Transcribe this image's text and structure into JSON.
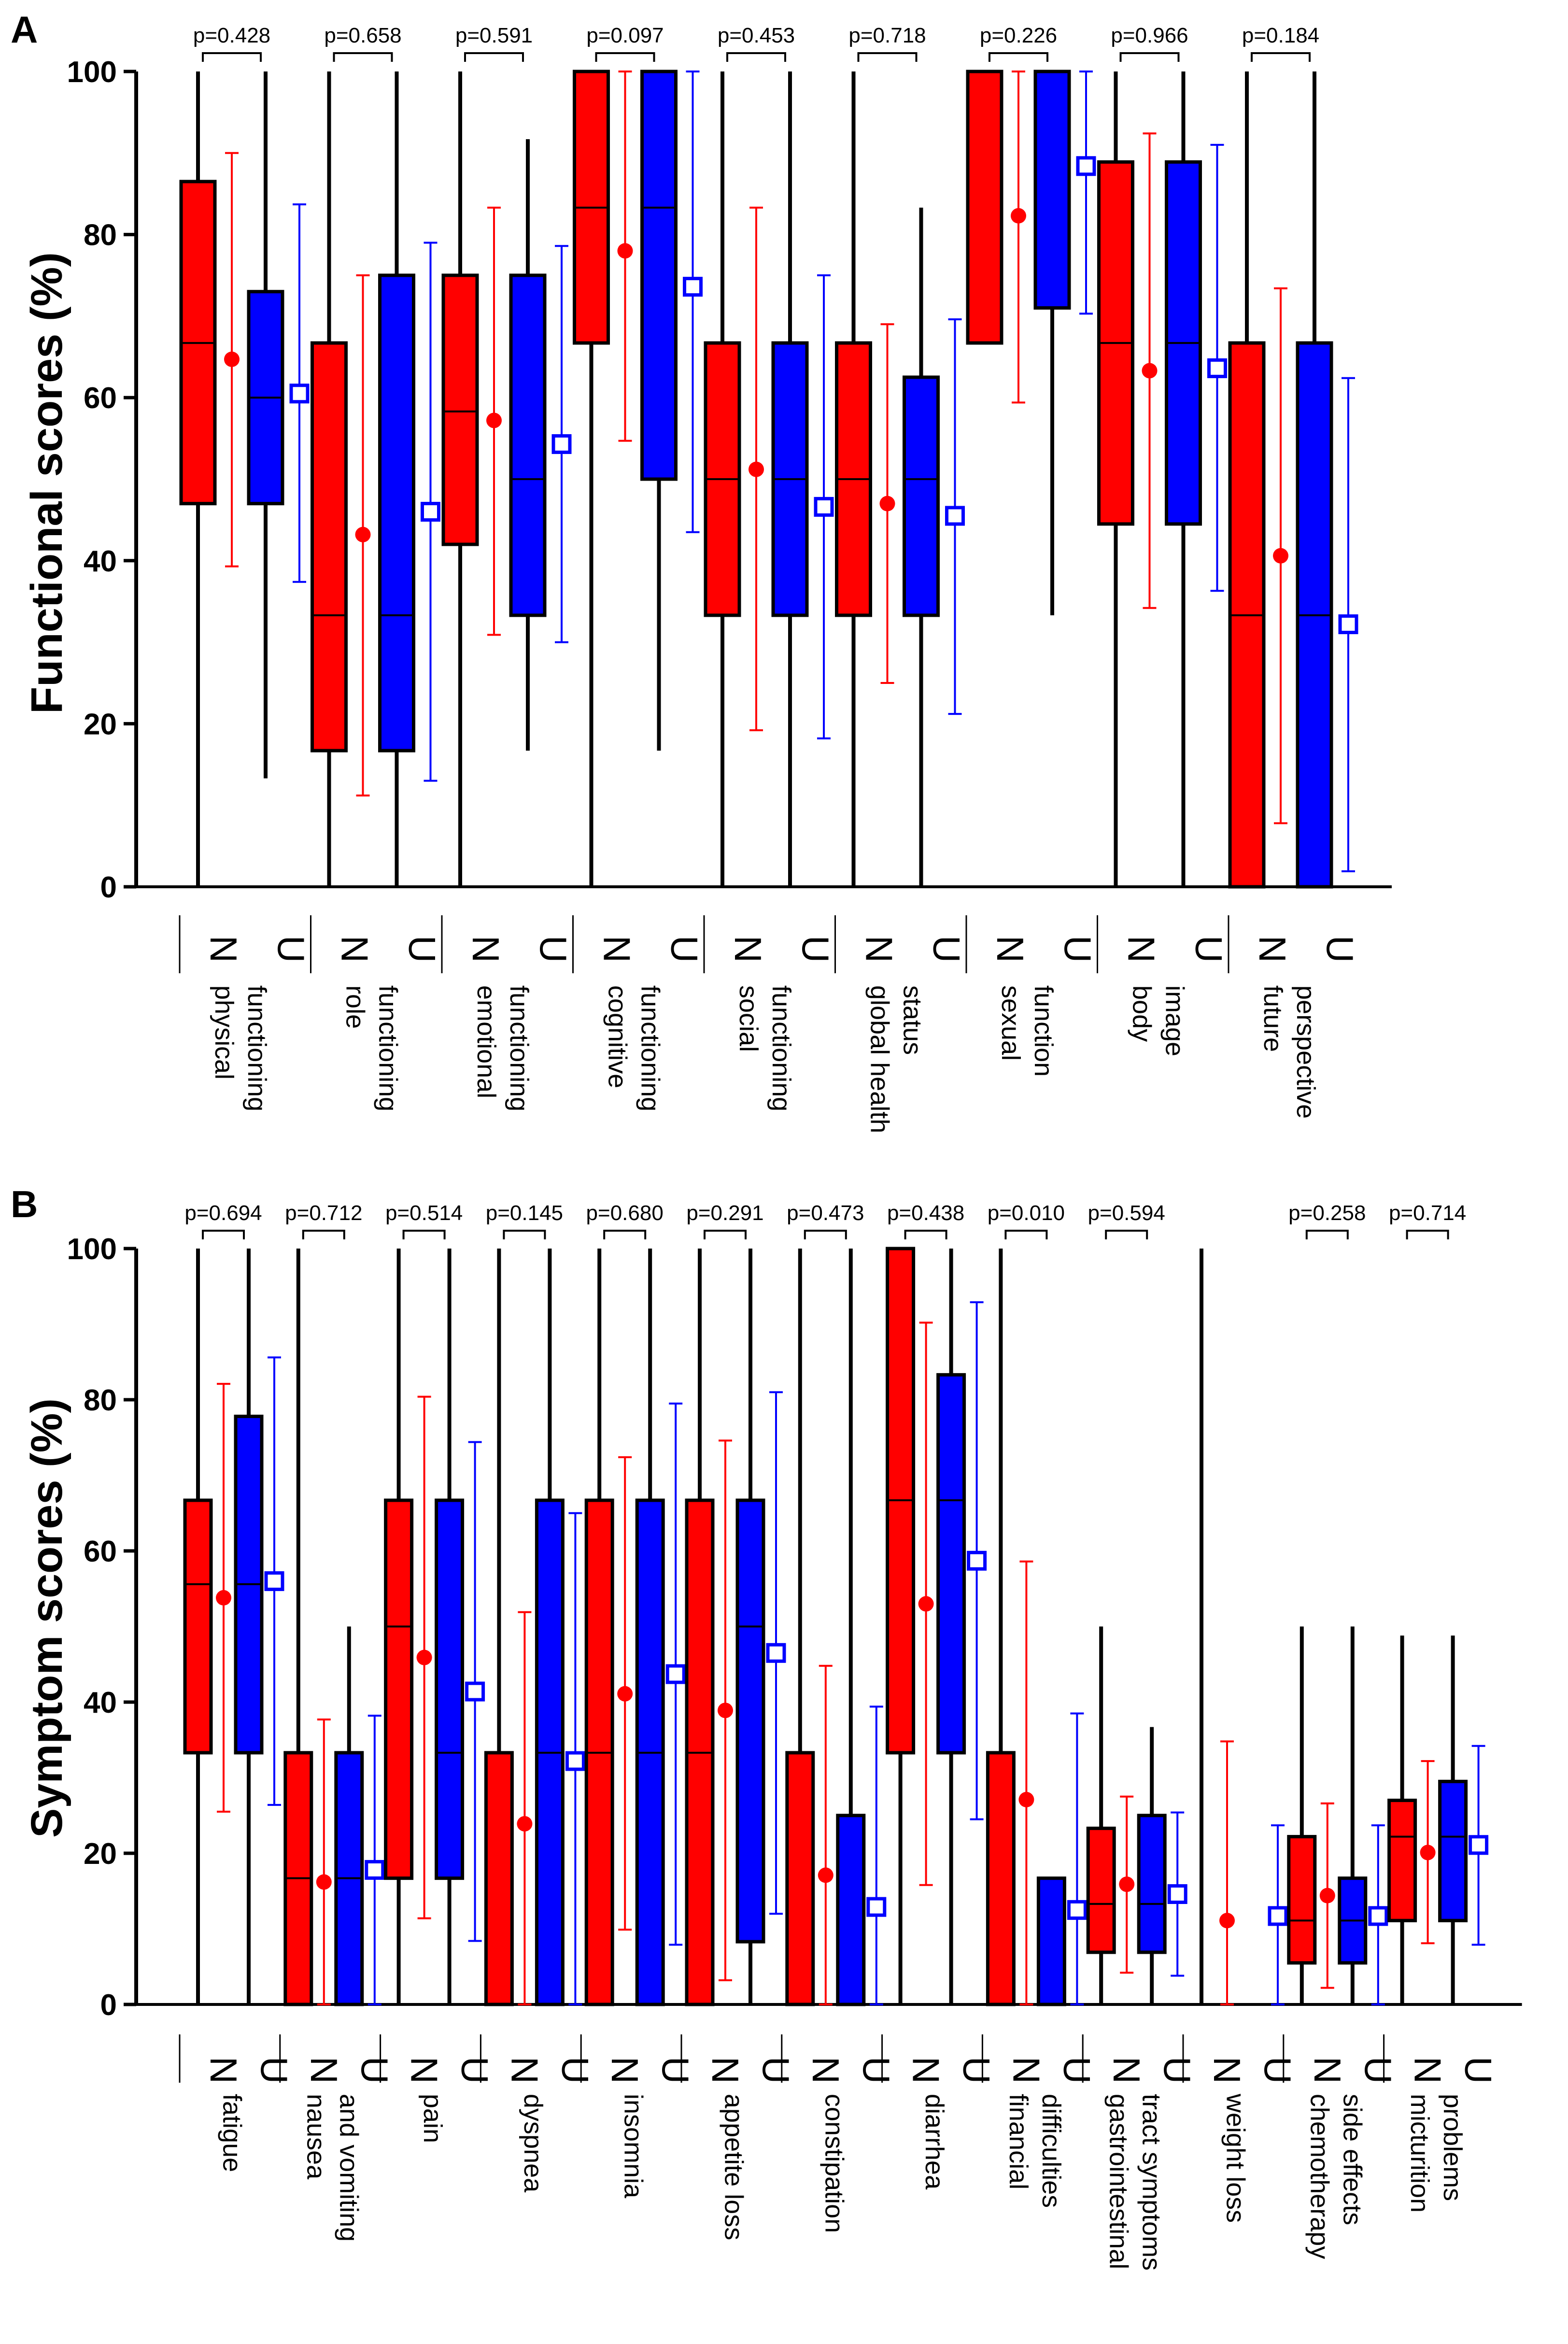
{
  "chart_data": [
    {
      "panel": "A",
      "type": "box",
      "ylabel": "Functional scores (%)",
      "ylim": [
        0,
        100
      ],
      "yticks": [
        0,
        20,
        40,
        60,
        80,
        100
      ],
      "group_markers": [
        "N",
        "U"
      ],
      "legend": [
        {
          "group": "N",
          "color": "#ff0000",
          "mean_marker": "filled circle"
        },
        {
          "group": "U",
          "color": "#0000ff",
          "mean_marker": "open square"
        }
      ],
      "categories": [
        {
          "label": [
            "physical",
            "functioning"
          ],
          "p": "p=0.428",
          "N": {
            "min": 0,
            "q1": 47,
            "median": 66.7,
            "q3": 86.5,
            "max": 100,
            "mean": 64.7,
            "sd_low": 39.3,
            "sd_high": 90
          },
          "U": {
            "min": 13.3,
            "q1": 47,
            "median": 60,
            "q3": 73,
            "max": 100,
            "mean": 60.5,
            "sd_low": 37.4,
            "sd_high": 83.7
          }
        },
        {
          "label": [
            "role",
            "functioning"
          ],
          "p": "p=0.658",
          "N": {
            "min": 0,
            "q1": 16.7,
            "median": 33.3,
            "q3": 66.7,
            "max": 100,
            "mean": 43.2,
            "sd_low": 11.2,
            "sd_high": 75
          },
          "U": {
            "min": 0,
            "q1": 16.7,
            "median": 33.3,
            "q3": 75,
            "max": 100,
            "mean": 46,
            "sd_low": 13,
            "sd_high": 79
          }
        },
        {
          "label": [
            "emotional",
            "functioning"
          ],
          "p": "p=0.591",
          "N": {
            "min": 0,
            "q1": 42,
            "median": 58.3,
            "q3": 75,
            "max": 100,
            "mean": 57.2,
            "sd_low": 30.9,
            "sd_high": 83.3
          },
          "U": {
            "min": 16.7,
            "q1": 33.3,
            "median": 50,
            "q3": 75,
            "max": 91.7,
            "mean": 54.3,
            "sd_low": 30,
            "sd_high": 78.6
          }
        },
        {
          "label": [
            "cognitive",
            "functioning"
          ],
          "p": "p=0.097",
          "N": {
            "min": 0,
            "q1": 66.7,
            "median": 83.3,
            "q3": 100,
            "max": 100,
            "mean": 78,
            "sd_low": 54.7,
            "sd_high": 100
          },
          "U": {
            "min": 16.7,
            "q1": 50,
            "median": 83.3,
            "q3": 100,
            "max": 100,
            "mean": 73.6,
            "sd_low": 43.5,
            "sd_high": 100
          }
        },
        {
          "label": [
            "social",
            "functioning"
          ],
          "p": "p=0.453",
          "N": {
            "min": 0,
            "q1": 33.3,
            "median": 50,
            "q3": 66.7,
            "max": 100,
            "mean": 51.2,
            "sd_low": 19.2,
            "sd_high": 83.3
          },
          "U": {
            "min": 0,
            "q1": 33.3,
            "median": 50,
            "q3": 66.7,
            "max": 100,
            "mean": 46.6,
            "sd_low": 18.2,
            "sd_high": 75
          }
        },
        {
          "label": [
            "global health",
            "status"
          ],
          "p": "p=0.718",
          "N": {
            "min": 0,
            "q1": 33.3,
            "median": 50,
            "q3": 66.7,
            "max": 100,
            "mean": 47,
            "sd_low": 25,
            "sd_high": 69
          },
          "U": {
            "min": 0,
            "q1": 33.3,
            "median": 50,
            "q3": 62.5,
            "max": 83.3,
            "mean": 45.5,
            "sd_low": 21.2,
            "sd_high": 69.6
          }
        },
        {
          "label": [
            "sexual",
            "function"
          ],
          "p": "p=0.226",
          "N": {
            "min": 66.7,
            "q1": 66.7,
            "median": 100,
            "q3": 100,
            "max": 100,
            "mean": 82.3,
            "sd_low": 59.4,
            "sd_high": 100
          },
          "U": {
            "min": 33.3,
            "q1": 71,
            "median": 100,
            "q3": 100,
            "max": 100,
            "mean": 88.4,
            "sd_low": 70.3,
            "sd_high": 100
          }
        },
        {
          "label": [
            "body",
            "image"
          ],
          "p": "p=0.966",
          "N": {
            "min": 0,
            "q1": 44.5,
            "median": 66.7,
            "q3": 88.9,
            "max": 100,
            "mean": 63.3,
            "sd_low": 34.2,
            "sd_high": 92.4
          },
          "U": {
            "min": 0,
            "q1": 44.5,
            "median": 66.7,
            "q3": 88.9,
            "max": 100,
            "mean": 63.6,
            "sd_low": 36.3,
            "sd_high": 91
          }
        },
        {
          "label": [
            "future",
            "perspective"
          ],
          "p": "p=0.184",
          "N": {
            "min": 0,
            "q1": 0,
            "median": 33.3,
            "q3": 66.7,
            "max": 100,
            "mean": 40.6,
            "sd_low": 7.8,
            "sd_high": 73.4
          },
          "U": {
            "min": 0,
            "q1": 0,
            "median": 33.3,
            "q3": 66.7,
            "max": 100,
            "mean": 32.2,
            "sd_low": 1.9,
            "sd_high": 62.4
          }
        }
      ]
    },
    {
      "panel": "B",
      "type": "box",
      "ylabel": "Symptom scores (%)",
      "ylim": [
        0,
        100
      ],
      "yticks": [
        0,
        20,
        40,
        60,
        80,
        100
      ],
      "group_markers": [
        "N",
        "U"
      ],
      "legend": [
        {
          "group": "N",
          "color": "#ff0000",
          "mean_marker": "filled circle"
        },
        {
          "group": "U",
          "color": "#0000ff",
          "mean_marker": "open square"
        }
      ],
      "categories": [
        {
          "label": [
            "fatigue"
          ],
          "p": "p=0.694",
          "N": {
            "min": 0,
            "q1": 33.3,
            "median": 55.6,
            "q3": 66.7,
            "max": 100,
            "mean": 53.8,
            "sd_low": 25.5,
            "sd_high": 82.1
          },
          "U": {
            "min": 0,
            "q1": 33.3,
            "median": 55.6,
            "q3": 77.8,
            "max": 100,
            "mean": 56,
            "sd_low": 26.4,
            "sd_high": 85.6
          }
        },
        {
          "label": [
            "nausea",
            "and vomiting"
          ],
          "p": "p=0.712",
          "N": {
            "min": 0,
            "q1": 0,
            "median": 16.7,
            "q3": 33.3,
            "max": 100,
            "mean": 16.2,
            "sd_low": 0,
            "sd_high": 37.7
          },
          "U": {
            "min": 0,
            "q1": 0,
            "median": 16.7,
            "q3": 33.3,
            "max": 50,
            "mean": 17.8,
            "sd_low": 0,
            "sd_high": 38.2
          }
        },
        {
          "label": [
            "pain"
          ],
          "p": "p=0.514",
          "N": {
            "min": 0,
            "q1": 16.7,
            "median": 50,
            "q3": 66.7,
            "max": 100,
            "mean": 45.9,
            "sd_low": 11.4,
            "sd_high": 80.4
          },
          "U": {
            "min": 0,
            "q1": 16.7,
            "median": 33.3,
            "q3": 66.7,
            "max": 100,
            "mean": 41.4,
            "sd_low": 8.4,
            "sd_high": 74.4
          }
        },
        {
          "label": [
            "dyspnea"
          ],
          "p": "p=0.145",
          "N": {
            "min": 0,
            "q1": 0,
            "median": 0,
            "q3": 33.3,
            "max": 100,
            "mean": 23.9,
            "sd_low": 0,
            "sd_high": 51.9
          },
          "U": {
            "min": 0,
            "q1": 0,
            "median": 33.3,
            "q3": 66.7,
            "max": 100,
            "mean": 32.2,
            "sd_low": 0,
            "sd_high": 65
          }
        },
        {
          "label": [
            "insomnia"
          ],
          "p": "p=0.680",
          "N": {
            "min": 0,
            "q1": 0,
            "median": 33.3,
            "q3": 66.7,
            "max": 100,
            "mean": 41.1,
            "sd_low": 9.9,
            "sd_high": 72.4
          },
          "U": {
            "min": 0,
            "q1": 0,
            "median": 33.3,
            "q3": 66.7,
            "max": 100,
            "mean": 43.7,
            "sd_low": 7.9,
            "sd_high": 79.5
          }
        },
        {
          "label": [
            "appetite loss"
          ],
          "p": "p=0.291",
          "N": {
            "min": 0,
            "q1": 0,
            "median": 33.3,
            "q3": 66.7,
            "max": 100,
            "mean": 38.9,
            "sd_low": 3.2,
            "sd_high": 74.6
          },
          "U": {
            "min": 0,
            "q1": 8.3,
            "median": 50,
            "q3": 66.7,
            "max": 100,
            "mean": 46.5,
            "sd_low": 12,
            "sd_high": 81
          }
        },
        {
          "label": [
            "constipation"
          ],
          "p": "p=0.473",
          "N": {
            "min": 0,
            "q1": 0,
            "median": 0,
            "q3": 33.3,
            "max": 100,
            "mean": 17.1,
            "sd_low": 0,
            "sd_high": 44.8
          },
          "U": {
            "min": 0,
            "q1": 0,
            "median": 0,
            "q3": 25,
            "max": 100,
            "mean": 12.9,
            "sd_low": 0,
            "sd_high": 39.4
          }
        },
        {
          "label": [
            "diarrhea"
          ],
          "p": "p=0.438",
          "N": {
            "min": 0,
            "q1": 33.3,
            "median": 66.7,
            "q3": 100,
            "max": 100,
            "mean": 53,
            "sd_low": 15.8,
            "sd_high": 90.2
          },
          "U": {
            "min": 0,
            "q1": 33.3,
            "median": 66.7,
            "q3": 83.3,
            "max": 100,
            "mean": 58.7,
            "sd_low": 24.5,
            "sd_high": 92.9
          }
        },
        {
          "label": [
            "financial",
            "difficulties"
          ],
          "p": "p=0.010",
          "N": {
            "min": 0,
            "q1": 0,
            "median": 0,
            "q3": 33.3,
            "max": 100,
            "mean": 27.1,
            "sd_low": 0,
            "sd_high": 58.6
          },
          "U": {
            "min": 0,
            "q1": 0,
            "median": 0,
            "q3": 16.7,
            "max": 16.7,
            "mean": 12.5,
            "sd_low": 0,
            "sd_high": 38.5
          }
        },
        {
          "label": [
            "gastrointestinal",
            "tract symptoms"
          ],
          "p": "p=0.594",
          "N": {
            "min": 0,
            "q1": 6.9,
            "median": 13.3,
            "q3": 23.3,
            "max": 50,
            "mean": 15.9,
            "sd_low": 4.2,
            "sd_high": 27.5
          },
          "U": {
            "min": 0,
            "q1": 6.9,
            "median": 13.3,
            "q3": 25,
            "max": 36.7,
            "mean": 14.6,
            "sd_low": 3.8,
            "sd_high": 25.4
          }
        },
        {
          "label": [
            "weight loss"
          ],
          "p": "",
          "N": {
            "min": 0,
            "q1": 0,
            "median": 0,
            "q3": 0,
            "max": 100,
            "mean": 11.1,
            "sd_low": 0,
            "sd_high": 34.8
          },
          "U": {
            "min": 0,
            "q1": 0,
            "median": 0,
            "q3": 0,
            "max": 0,
            "mean": 11.7,
            "sd_low": 0,
            "sd_high": 23.7
          }
        },
        {
          "label": [
            "chemotherapy",
            "side effects"
          ],
          "p": "p=0.258",
          "N": {
            "min": 0,
            "q1": 5.5,
            "median": 11.1,
            "q3": 22.2,
            "max": 50,
            "mean": 14.4,
            "sd_low": 2.2,
            "sd_high": 26.6
          },
          "U": {
            "min": 0,
            "q1": 5.5,
            "median": 11.1,
            "q3": 16.7,
            "max": 50,
            "mean": 11.7,
            "sd_low": 0,
            "sd_high": 23.7
          }
        },
        {
          "label": [
            "micturition",
            "problems"
          ],
          "p": "p=0.714",
          "N": {
            "min": 0,
            "q1": 11.1,
            "median": 22.2,
            "q3": 27,
            "max": 48.8,
            "mean": 20.1,
            "sd_low": 8.1,
            "sd_high": 32.2
          },
          "U": {
            "min": 0,
            "q1": 11.1,
            "median": 22.2,
            "q3": 29.5,
            "max": 48.8,
            "mean": 21.1,
            "sd_low": 7.9,
            "sd_high": 34.2
          }
        }
      ]
    }
  ]
}
